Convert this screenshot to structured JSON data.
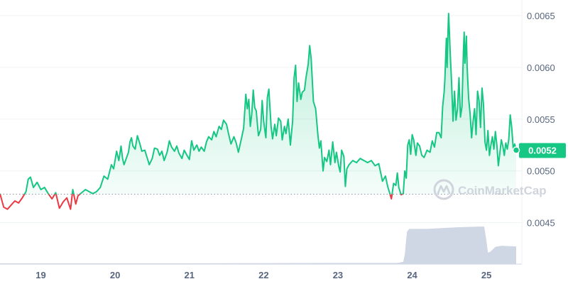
{
  "chart_data": {
    "type": "line",
    "baseline_price": 0.004775,
    "current_price": 0.0052,
    "current_price_label": "0.0052",
    "ylim": [
      0.0041,
      0.00665
    ],
    "yticks": [
      {
        "value": 0.0045,
        "label": "0.0045"
      },
      {
        "value": 0.005,
        "label": "0.0050"
      },
      {
        "value": 0.0055,
        "label": "0.0055"
      },
      {
        "value": 0.006,
        "label": "0.0060"
      },
      {
        "value": 0.0065,
        "label": "0.0065"
      }
    ],
    "xlim": [
      18.45,
      25.4
    ],
    "xticks": [
      {
        "value": 19,
        "label": "19"
      },
      {
        "value": 20,
        "label": "20"
      },
      {
        "value": 21,
        "label": "21"
      },
      {
        "value": 22,
        "label": "22"
      },
      {
        "value": 23,
        "label": "23"
      },
      {
        "value": 24,
        "label": "24"
      },
      {
        "value": 25,
        "label": "25"
      }
    ],
    "grid": true,
    "colors": {
      "up": "#16c784",
      "down": "#ea3943",
      "up_fill": "#16c784",
      "volume": "#cfd6e4",
      "axis_text": "#58667e",
      "grid": "#eff2f5",
      "watermark": "#d0d5dd"
    },
    "series": [
      {
        "values": [
          [
            18.45,
            0.00478
          ],
          [
            18.5,
            0.00465
          ],
          [
            18.55,
            0.00463
          ],
          [
            18.6,
            0.00467
          ],
          [
            18.65,
            0.00471
          ],
          [
            18.7,
            0.00469
          ],
          [
            18.75,
            0.00474
          ],
          [
            18.8,
            0.0048
          ],
          [
            18.83,
            0.00492
          ],
          [
            18.86,
            0.00494
          ],
          [
            18.9,
            0.00484
          ],
          [
            18.95,
            0.00489
          ],
          [
            19.0,
            0.00482
          ],
          [
            19.05,
            0.00484
          ],
          [
            19.1,
            0.00478
          ],
          [
            19.15,
            0.00473
          ],
          [
            19.2,
            0.00479
          ],
          [
            19.25,
            0.00464
          ],
          [
            19.3,
            0.0047
          ],
          [
            19.35,
            0.00474
          ],
          [
            19.4,
            0.00463
          ],
          [
            19.43,
            0.00482
          ],
          [
            19.47,
            0.00468
          ],
          [
            19.5,
            0.00476
          ],
          [
            19.55,
            0.00479
          ],
          [
            19.6,
            0.00482
          ],
          [
            19.65,
            0.0048
          ],
          [
            19.7,
            0.00478
          ],
          [
            19.75,
            0.0048
          ],
          [
            19.8,
            0.00484
          ],
          [
            19.85,
            0.00495
          ],
          [
            19.9,
            0.00492
          ],
          [
            19.95,
            0.00506
          ],
          [
            19.98,
            0.00502
          ],
          [
            20.02,
            0.00519
          ],
          [
            20.05,
            0.0051
          ],
          [
            20.08,
            0.00524
          ],
          [
            20.1,
            0.00512
          ],
          [
            20.12,
            0.00506
          ],
          [
            20.15,
            0.00512
          ],
          [
            20.18,
            0.00518
          ],
          [
            20.2,
            0.00528
          ],
          [
            20.22,
            0.00532
          ],
          [
            20.24,
            0.00524
          ],
          [
            20.27,
            0.00521
          ],
          [
            20.3,
            0.00534
          ],
          [
            20.33,
            0.00527
          ],
          [
            20.36,
            0.00519
          ],
          [
            20.4,
            0.0052
          ],
          [
            20.43,
            0.00513
          ],
          [
            20.46,
            0.00506
          ],
          [
            20.5,
            0.00512
          ],
          [
            20.53,
            0.00522
          ],
          [
            20.57,
            0.00521
          ],
          [
            20.6,
            0.00515
          ],
          [
            20.63,
            0.00519
          ],
          [
            20.66,
            0.0051
          ],
          [
            20.7,
            0.00518
          ],
          [
            20.73,
            0.00529
          ],
          [
            20.76,
            0.00523
          ],
          [
            20.8,
            0.00519
          ],
          [
            20.83,
            0.00524
          ],
          [
            20.86,
            0.00517
          ],
          [
            20.9,
            0.00512
          ],
          [
            20.93,
            0.0052
          ],
          [
            20.96,
            0.00516
          ],
          [
            21.0,
            0.00511
          ],
          [
            21.03,
            0.00529
          ],
          [
            21.06,
            0.0052
          ],
          [
            21.1,
            0.00525
          ],
          [
            21.13,
            0.00519
          ],
          [
            21.16,
            0.00523
          ],
          [
            21.2,
            0.00519
          ],
          [
            21.23,
            0.00528
          ],
          [
            21.26,
            0.00533
          ],
          [
            21.3,
            0.0053
          ],
          [
            21.33,
            0.00538
          ],
          [
            21.36,
            0.00533
          ],
          [
            21.4,
            0.00543
          ],
          [
            21.43,
            0.0054
          ],
          [
            21.46,
            0.00549
          ],
          [
            21.5,
            0.00545
          ],
          [
            21.53,
            0.00535
          ],
          [
            21.56,
            0.00526
          ],
          [
            21.6,
            0.00533
          ],
          [
            21.63,
            0.00527
          ],
          [
            21.66,
            0.00518
          ],
          [
            21.7,
            0.00531
          ],
          [
            21.73,
            0.00541
          ],
          [
            21.76,
            0.00574
          ],
          [
            21.78,
            0.0056
          ],
          [
            21.8,
            0.00569
          ],
          [
            21.82,
            0.00543
          ],
          [
            21.84,
            0.00555
          ],
          [
            21.86,
            0.00578
          ],
          [
            21.88,
            0.00561
          ],
          [
            21.9,
            0.00558
          ],
          [
            21.93,
            0.00534
          ],
          [
            21.96,
            0.0054
          ],
          [
            21.98,
            0.00568
          ],
          [
            22.0,
            0.00548
          ],
          [
            22.03,
            0.00532
          ],
          [
            22.05,
            0.00571
          ],
          [
            22.07,
            0.00579
          ],
          [
            22.1,
            0.00543
          ],
          [
            22.12,
            0.00531
          ],
          [
            22.15,
            0.00545
          ],
          [
            22.17,
            0.00534
          ],
          [
            22.2,
            0.00551
          ],
          [
            22.23,
            0.00548
          ],
          [
            22.25,
            0.0053
          ],
          [
            22.28,
            0.00543
          ],
          [
            22.3,
            0.00536
          ],
          [
            22.33,
            0.0055
          ],
          [
            22.36,
            0.00525
          ],
          [
            22.39,
            0.00548
          ],
          [
            22.41,
            0.0059
          ],
          [
            22.43,
            0.00602
          ],
          [
            22.45,
            0.00567
          ],
          [
            22.47,
            0.00585
          ],
          [
            22.5,
            0.00569
          ],
          [
            22.52,
            0.00576
          ],
          [
            22.55,
            0.00578
          ],
          [
            22.57,
            0.0059
          ],
          [
            22.6,
            0.00603
          ],
          [
            22.62,
            0.00621
          ],
          [
            22.64,
            0.00608
          ],
          [
            22.67,
            0.00567
          ],
          [
            22.7,
            0.0056
          ],
          [
            22.73,
            0.00535
          ],
          [
            22.75,
            0.00522
          ],
          [
            22.77,
            0.00529
          ],
          [
            22.8,
            0.005
          ],
          [
            22.82,
            0.00513
          ],
          [
            22.85,
            0.00509
          ],
          [
            22.88,
            0.0052
          ],
          [
            22.9,
            0.00506
          ],
          [
            22.93,
            0.00528
          ],
          [
            22.96,
            0.00508
          ],
          [
            22.98,
            0.00518
          ],
          [
            23.01,
            0.00505
          ],
          [
            23.03,
            0.00499
          ],
          [
            23.05,
            0.0052
          ],
          [
            23.08,
            0.00514
          ],
          [
            23.1,
            0.00485
          ],
          [
            23.12,
            0.00502
          ],
          [
            23.15,
            0.00506
          ],
          [
            23.2,
            0.0051
          ],
          [
            23.25,
            0.00508
          ],
          [
            23.3,
            0.00512
          ],
          [
            23.35,
            0.0051
          ],
          [
            23.4,
            0.00508
          ],
          [
            23.45,
            0.0051
          ],
          [
            23.5,
            0.00505
          ],
          [
            23.55,
            0.00507
          ],
          [
            23.6,
            0.0049
          ],
          [
            23.64,
            0.00495
          ],
          [
            23.67,
            0.00485
          ],
          [
            23.7,
            0.00478
          ],
          [
            23.72,
            0.00473
          ],
          [
            23.75,
            0.00488
          ],
          [
            23.78,
            0.00486
          ],
          [
            23.8,
            0.00498
          ],
          [
            23.82,
            0.00484
          ],
          [
            23.85,
            0.00477
          ],
          [
            23.88,
            0.00478
          ],
          [
            23.9,
            0.005
          ],
          [
            23.92,
            0.00493
          ],
          [
            23.94,
            0.00525
          ],
          [
            23.96,
            0.0053
          ],
          [
            23.98,
            0.00516
          ],
          [
            24.0,
            0.00535
          ],
          [
            24.02,
            0.0053
          ],
          [
            24.05,
            0.00515
          ],
          [
            24.07,
            0.00527
          ],
          [
            24.1,
            0.00524
          ],
          [
            24.13,
            0.00515
          ],
          [
            24.16,
            0.00513
          ],
          [
            24.2,
            0.0052
          ],
          [
            24.24,
            0.00518
          ],
          [
            24.27,
            0.00529
          ],
          [
            24.3,
            0.00523
          ],
          [
            24.33,
            0.00537
          ],
          [
            24.36,
            0.00537
          ],
          [
            24.39,
            0.00532
          ],
          [
            24.41,
            0.00562
          ],
          [
            24.43,
            0.00576
          ],
          [
            24.44,
            0.00588
          ],
          [
            24.46,
            0.00628
          ],
          [
            24.47,
            0.006
          ],
          [
            24.48,
            0.00629
          ],
          [
            24.49,
            0.00652
          ],
          [
            24.5,
            0.00636
          ],
          [
            24.51,
            0.00617
          ],
          [
            24.53,
            0.00586
          ],
          [
            24.55,
            0.00548
          ],
          [
            24.57,
            0.00577
          ],
          [
            24.59,
            0.00549
          ],
          [
            24.61,
            0.0056
          ],
          [
            24.63,
            0.0059
          ],
          [
            24.65,
            0.00552
          ],
          [
            24.67,
            0.00562
          ],
          [
            24.69,
            0.00616
          ],
          [
            24.7,
            0.00634
          ],
          [
            24.71,
            0.00604
          ],
          [
            24.73,
            0.0063
          ],
          [
            24.74,
            0.006
          ],
          [
            24.76,
            0.0057
          ],
          [
            24.78,
            0.00555
          ],
          [
            24.8,
            0.00532
          ],
          [
            24.82,
            0.00548
          ],
          [
            24.84,
            0.0056
          ],
          [
            24.86,
            0.00535
          ],
          [
            24.88,
            0.00577
          ],
          [
            24.9,
            0.00568
          ],
          [
            24.92,
            0.00542
          ],
          [
            24.94,
            0.0058
          ],
          [
            24.96,
            0.00564
          ],
          [
            24.98,
            0.00528
          ],
          [
            25.0,
            0.0052
          ],
          [
            25.02,
            0.00539
          ],
          [
            25.04,
            0.00515
          ],
          [
            25.06,
            0.00525
          ],
          [
            25.08,
            0.00533
          ],
          [
            25.1,
            0.00521
          ],
          [
            25.12,
            0.00538
          ],
          [
            25.14,
            0.00525
          ],
          [
            25.16,
            0.00505
          ],
          [
            25.18,
            0.00517
          ],
          [
            25.2,
            0.0053
          ],
          [
            25.22,
            0.00524
          ],
          [
            25.24,
            0.00515
          ],
          [
            25.26,
            0.00527
          ],
          [
            25.28,
            0.00521
          ],
          [
            25.3,
            0.0053
          ],
          [
            25.32,
            0.00554
          ],
          [
            25.34,
            0.00542
          ],
          [
            25.36,
            0.00522
          ],
          [
            25.38,
            0.00526
          ],
          [
            25.4,
            0.0052
          ]
        ]
      }
    ],
    "volume": {
      "relative_max": 1.0,
      "values": [
        [
          18.45,
          0.02
        ],
        [
          19.0,
          0.02
        ],
        [
          20.0,
          0.02
        ],
        [
          21.0,
          0.02
        ],
        [
          22.0,
          0.025
        ],
        [
          23.0,
          0.03
        ],
        [
          23.8,
          0.03
        ],
        [
          23.88,
          0.06
        ],
        [
          23.9,
          0.25
        ],
        [
          23.93,
          0.85
        ],
        [
          23.96,
          0.92
        ],
        [
          24.0,
          0.92
        ],
        [
          24.2,
          0.92
        ],
        [
          24.4,
          0.94
        ],
        [
          24.6,
          0.96
        ],
        [
          24.9,
          0.98
        ],
        [
          24.97,
          0.98
        ],
        [
          25.0,
          0.6
        ],
        [
          25.02,
          0.3
        ],
        [
          25.05,
          0.32
        ],
        [
          25.12,
          0.45
        ],
        [
          25.2,
          0.48
        ],
        [
          25.4,
          0.46
        ]
      ]
    },
    "watermark": {
      "text": "CoinMarketCap"
    }
  }
}
